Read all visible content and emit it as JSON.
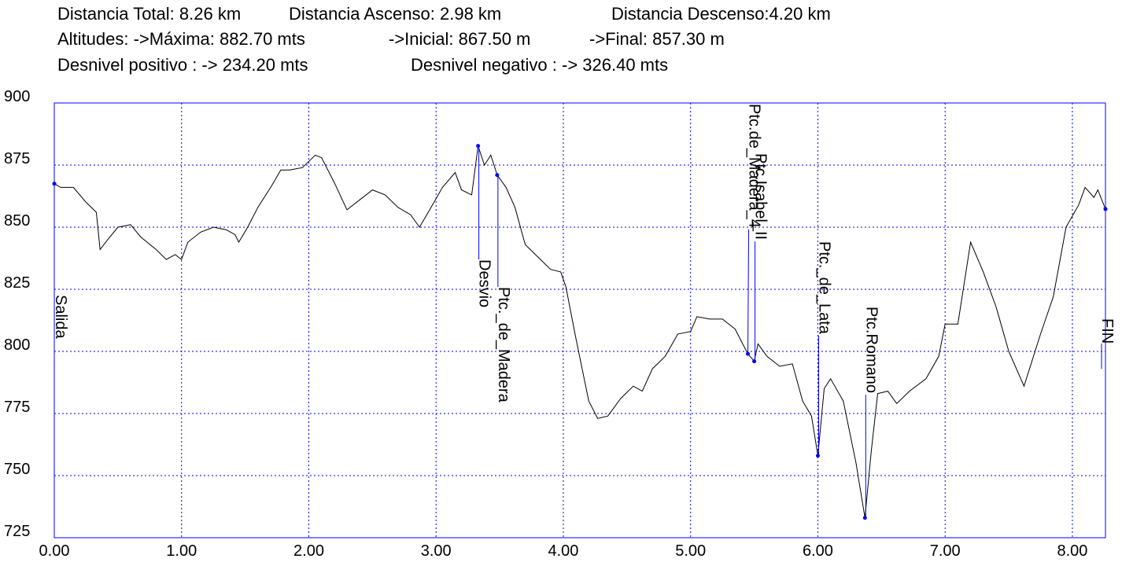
{
  "chart_data": {
    "type": "line",
    "header": [
      [
        "Distancia Total: 8.26 km",
        "Distancia Ascenso: 2.98 km",
        "Distancia Descenso:4.20 km"
      ],
      [
        "Altitudes: ->Máxima: 882.70 mts",
        "->Inicial: 867.50 m",
        "->Final: 857.30 m"
      ],
      [
        "Desnivel positivo : -> 234.20 mts",
        "Desnivel negativo : -> 326.40 mts"
      ]
    ],
    "x": [
      0.0,
      0.05,
      0.15,
      0.25,
      0.33,
      0.36,
      0.42,
      0.5,
      0.6,
      0.68,
      0.8,
      0.88,
      0.95,
      1.0,
      1.05,
      1.15,
      1.25,
      1.35,
      1.42,
      1.45,
      1.52,
      1.6,
      1.7,
      1.78,
      1.85,
      1.95,
      2.05,
      2.1,
      2.2,
      2.3,
      2.4,
      2.5,
      2.6,
      2.7,
      2.8,
      2.87,
      2.95,
      3.05,
      3.15,
      3.2,
      3.28,
      3.33,
      3.38,
      3.43,
      3.48,
      3.55,
      3.62,
      3.7,
      3.8,
      3.9,
      3.98,
      4.02,
      4.1,
      4.2,
      4.27,
      4.35,
      4.45,
      4.55,
      4.62,
      4.7,
      4.8,
      4.9,
      5.0,
      5.05,
      5.15,
      5.25,
      5.35,
      5.45,
      5.5,
      5.53,
      5.6,
      5.7,
      5.8,
      5.88,
      5.95,
      6.0,
      6.05,
      6.1,
      6.2,
      6.3,
      6.37,
      6.42,
      6.47,
      6.55,
      6.62,
      6.72,
      6.85,
      6.95,
      7.0,
      7.1,
      7.2,
      7.3,
      7.4,
      7.5,
      7.62,
      7.75,
      7.85,
      7.95,
      8.05,
      8.1,
      8.17,
      8.2,
      8.26
    ],
    "values": [
      867.5,
      866,
      866,
      860,
      856,
      841,
      845,
      850,
      851,
      846,
      841,
      837,
      839,
      837,
      844,
      848,
      850,
      849,
      847,
      844,
      850,
      858,
      866,
      873,
      873,
      874,
      879,
      878,
      868,
      857,
      861,
      865,
      863,
      858,
      855,
      850,
      857,
      866,
      872,
      865,
      863,
      882.7,
      875,
      879,
      871,
      866,
      858,
      843,
      838,
      833,
      832,
      826,
      805,
      780,
      773,
      774,
      781,
      786,
      784,
      793,
      798,
      807,
      808,
      814,
      813,
      813,
      809,
      799,
      796,
      803,
      798,
      794,
      795,
      780,
      774,
      758,
      785,
      789,
      780,
      755,
      733,
      760,
      783,
      784,
      779,
      784,
      789,
      798,
      811,
      811,
      844,
      832,
      818,
      800,
      786,
      807,
      822,
      850,
      859,
      866,
      862,
      865,
      857.3
    ],
    "color": "#000000",
    "marker_color": "#0000ff",
    "xlim": [
      0,
      8.26
    ],
    "ylim": [
      725,
      900
    ],
    "xticks": [
      {
        "value": 0,
        "label": "0.00"
      },
      {
        "value": 1,
        "label": "1.00"
      },
      {
        "value": 2,
        "label": "2.00"
      },
      {
        "value": 3,
        "label": "3.00"
      },
      {
        "value": 4,
        "label": "4.00"
      },
      {
        "value": 5,
        "label": "5.00"
      },
      {
        "value": 6,
        "label": "6.00"
      },
      {
        "value": 7,
        "label": "7.00"
      },
      {
        "value": 8,
        "label": "8.00"
      }
    ],
    "yticks": [
      725,
      750,
      775,
      800,
      825,
      850,
      875,
      900
    ],
    "grid": true,
    "annotations": [
      {
        "label": "Salida",
        "x": 0,
        "y": 867.5
      },
      {
        "label": "Desvio",
        "x": 3.33,
        "y": 882.7
      },
      {
        "label": "Ptc._de_Madera",
        "x": 3.48,
        "y": 871
      },
      {
        "label": "Ptc.de_Madera_4",
        "x": 5.45,
        "y": 799
      },
      {
        "label": "Ptc.Isabel_II",
        "x": 5.5,
        "y": 796
      },
      {
        "label": "Ptc._de_Lata",
        "x": 6.0,
        "y": 758
      },
      {
        "label": "Ptc.Romano",
        "x": 6.37,
        "y": 733
      },
      {
        "label": "FIN",
        "x": 8.26,
        "y": 857.3
      }
    ]
  }
}
